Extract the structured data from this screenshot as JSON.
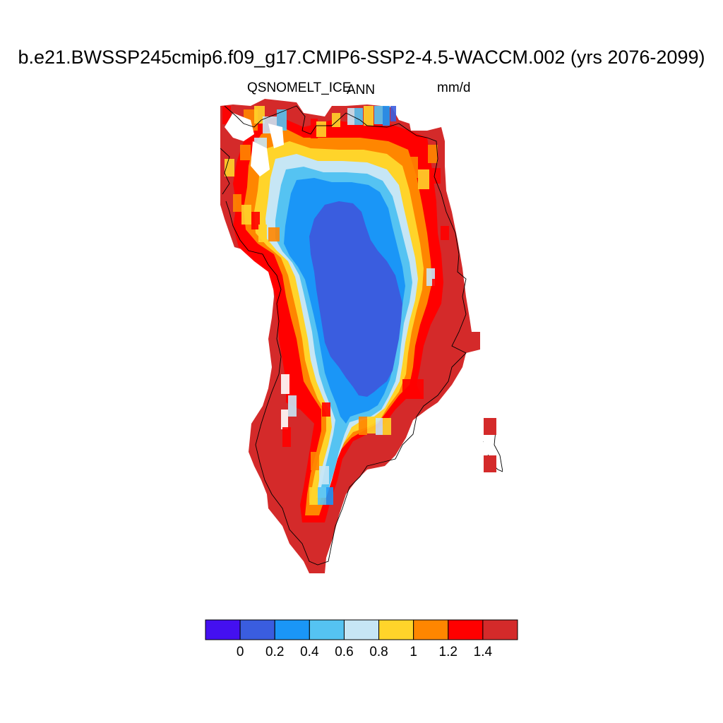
{
  "title": "b.e21.BWSSP245cmip6.f09_g17.CMIP6-SSP2-4.5-WACCM.002 (yrs 2076-2099)",
  "variable": "QSNOMELT_ICE",
  "statistic": "ANN",
  "units": "mm/d",
  "map": {
    "region": "Greenland",
    "field": "snow melt over ice sheet",
    "interior_level": "0 to 0.2 mm/d",
    "margin_level": "> 1.4 mm/d"
  },
  "colorbar": {
    "colors": [
      "#4410f0",
      "#3a5ddf",
      "#1a96f7",
      "#55c3f2",
      "#c6e6f5",
      "#ffd42a",
      "#ff8600",
      "#ff0000",
      "#d42a2a"
    ],
    "labels": [
      "0",
      "0.2",
      "0.4",
      "0.6",
      "0.8",
      "1",
      "1.2",
      "1.4"
    ]
  }
}
